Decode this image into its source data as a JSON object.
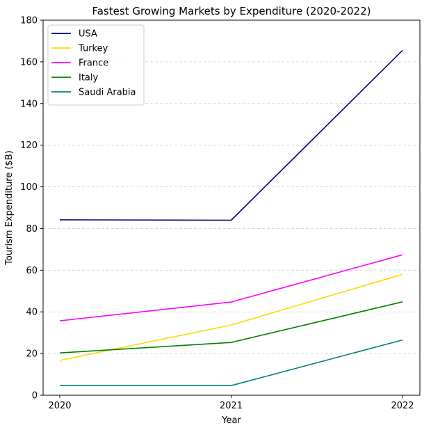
{
  "chart_data": {
    "type": "line",
    "title": "Fastest Growing Markets by Expenditure (2020-2022)",
    "xlabel": "Year",
    "ylabel": "Tourism Expenditure ($B)",
    "x": [
      "2020",
      "2021",
      "2022"
    ],
    "ylim": [
      0,
      180
    ],
    "yticks": [
      0,
      20,
      40,
      60,
      80,
      100,
      120,
      140,
      160,
      180
    ],
    "grid": "y-dashed",
    "legend_position": "top-left",
    "series": [
      {
        "name": "USA",
        "color": "#000080",
        "values": [
          84.2,
          84.0,
          165.5
        ]
      },
      {
        "name": "Turkey",
        "color": "#ffd700",
        "values": [
          16.7,
          33.7,
          58.0
        ]
      },
      {
        "name": "France",
        "color": "#ff00ff",
        "values": [
          35.7,
          44.7,
          67.4
        ]
      },
      {
        "name": "Italy",
        "color": "#008000",
        "values": [
          20.3,
          25.3,
          44.8
        ]
      },
      {
        "name": "Saudi Arabia",
        "color": "#008080",
        "values": [
          4.6,
          4.6,
          26.5
        ]
      }
    ]
  }
}
